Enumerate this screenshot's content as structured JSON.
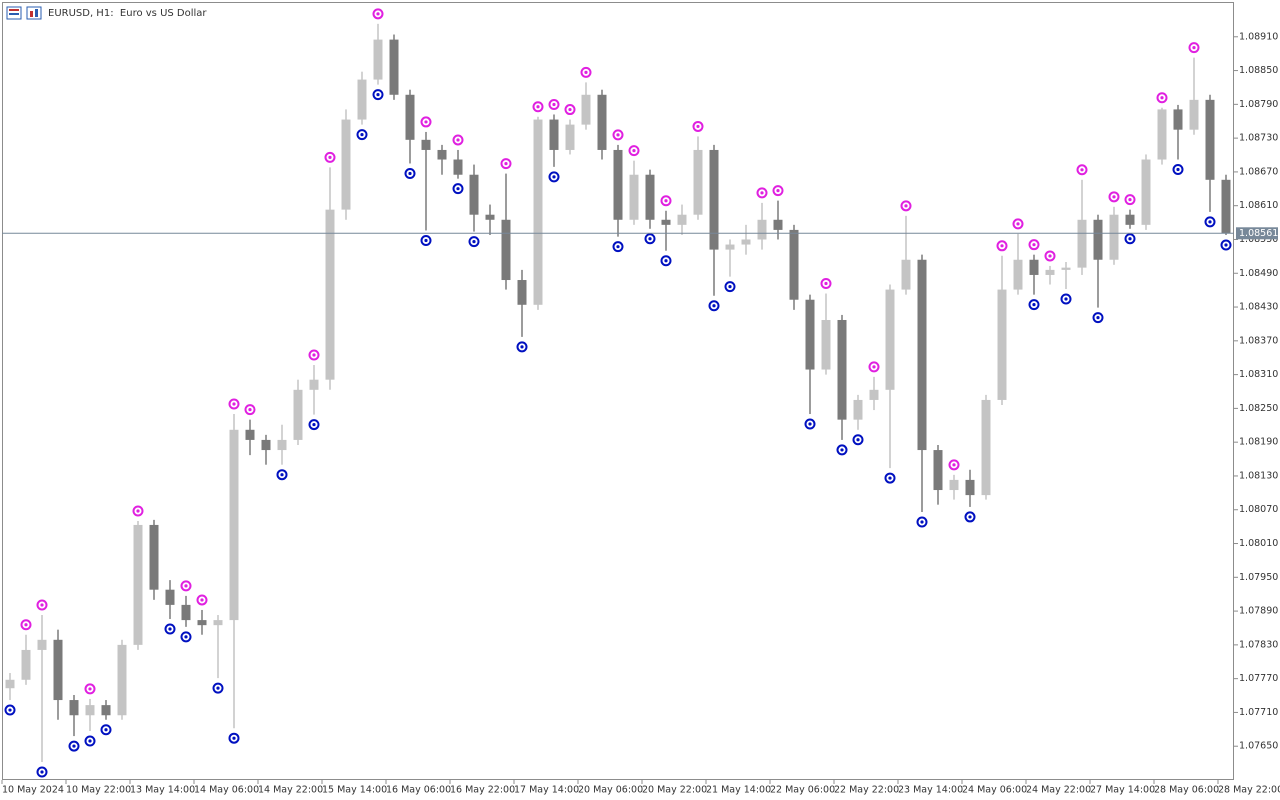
{
  "chart_data": {
    "type": "candlestick",
    "title": "EURUSD, H1:  Euro vs US Dollar",
    "categories": [
      "10 May 2024",
      null,
      null,
      null,
      "10 May 22:00",
      null,
      null,
      null,
      "13 May 14:00",
      null,
      null,
      null,
      "14 May 06:00",
      null,
      null,
      null,
      "14 May 22:00",
      null,
      null,
      null,
      "15 May 14:00",
      null,
      null,
      null,
      "16 May 06:00",
      null,
      null,
      null,
      "16 May 22:00",
      null,
      null,
      null,
      "17 May 14:00",
      null,
      null,
      null,
      "20 May 06:00",
      null,
      null,
      null,
      "20 May 22:00",
      null,
      null,
      null,
      "21 May 14:00",
      null,
      null,
      null,
      "22 May 06:00",
      null,
      null,
      null,
      "22 May 22:00",
      null,
      null,
      null,
      "23 May 14:00",
      null,
      null,
      null,
      "24 May 06:00",
      null,
      null,
      null,
      "24 May 22:00",
      null,
      null,
      null,
      "27 May 14:00",
      null,
      null,
      null,
      "28 May 06:00",
      null,
      null,
      null,
      "28 May 22:00"
    ],
    "open": [
      1.07753,
      1.07768,
      1.07821,
      1.07839,
      1.07732,
      1.07705,
      1.07723,
      1.07705,
      1.0783,
      1.08043,
      1.07928,
      1.07901,
      1.07874,
      1.07865,
      1.07874,
      1.08212,
      1.08194,
      1.08176,
      1.08194,
      1.08283,
      1.08301,
      1.08603,
      1.08763,
      1.08834,
      1.08905,
      1.08807,
      1.08727,
      1.08709,
      1.08692,
      1.08665,
      1.08594,
      1.08585,
      1.08478,
      1.08434,
      1.08763,
      1.08709,
      1.08754,
      1.08807,
      1.08709,
      1.08585,
      1.08665,
      1.08585,
      1.08576,
      1.08594,
      1.08709,
      1.08532,
      1.08541,
      1.0855,
      1.08585,
      1.08567,
      1.08443,
      1.08319,
      1.08407,
      1.0823,
      1.08265,
      1.08283,
      1.08461,
      1.08514,
      1.08176,
      1.08105,
      1.08123,
      1.08096,
      1.08265,
      1.08461,
      1.08514,
      1.08487,
      1.08496,
      1.085,
      1.08585,
      1.08514,
      1.08594,
      1.08576,
      1.08692,
      1.08781,
      1.08745,
      1.08798,
      1.08656
    ],
    "high": [
      1.0778,
      1.07848,
      1.07883,
      1.07857,
      1.07741,
      1.07734,
      1.07732,
      1.07839,
      1.0805,
      1.08052,
      1.07945,
      1.07917,
      1.07892,
      1.07883,
      1.0824,
      1.0823,
      1.08203,
      1.08221,
      1.08301,
      1.08327,
      1.08678,
      1.08781,
      1.08848,
      1.08933,
      1.08914,
      1.08816,
      1.08741,
      1.08718,
      1.08709,
      1.08683,
      1.08612,
      1.08667,
      1.08496,
      1.08768,
      1.08772,
      1.08763,
      1.08829,
      1.08816,
      1.08718,
      1.0869,
      1.08674,
      1.08601,
      1.08612,
      1.08733,
      1.08718,
      1.0855,
      1.08576,
      1.08615,
      1.08619,
      1.08576,
      1.08452,
      1.08454,
      1.08416,
      1.08274,
      1.08306,
      1.0847,
      1.08592,
      1.08523,
      1.08185,
      1.08132,
      1.08141,
      1.08274,
      1.08521,
      1.0856,
      1.08523,
      1.08503,
      1.0851,
      1.08656,
      1.08594,
      1.08608,
      1.08603,
      1.08701,
      1.08784,
      1.08789,
      1.08873,
      1.08807,
      1.08665
    ],
    "low": [
      1.07732,
      1.07759,
      1.07622,
      1.07697,
      1.07668,
      1.07677,
      1.07697,
      1.07697,
      1.07821,
      1.0791,
      1.07876,
      1.07862,
      1.07848,
      1.07771,
      1.07682,
      1.08167,
      1.0815,
      1.0815,
      1.08185,
      1.08239,
      1.08283,
      1.08585,
      1.08754,
      1.08825,
      1.08798,
      1.08685,
      1.08566,
      1.08665,
      1.08658,
      1.08564,
      1.08558,
      1.08461,
      1.08377,
      1.08425,
      1.08679,
      1.08701,
      1.08745,
      1.08692,
      1.08555,
      1.08576,
      1.08569,
      1.0853,
      1.08558,
      1.08585,
      1.0845,
      1.08484,
      1.08523,
      1.08532,
      1.0855,
      1.08425,
      1.0824,
      1.0831,
      1.08194,
      1.08212,
      1.08247,
      1.08144,
      1.08452,
      1.08066,
      1.08079,
      1.08088,
      1.08075,
      1.08088,
      1.08256,
      1.08452,
      1.08452,
      1.0847,
      1.08462,
      1.08487,
      1.08429,
      1.08505,
      1.08569,
      1.08567,
      1.08683,
      1.08692,
      1.08736,
      1.08599,
      1.08558
    ],
    "close": [
      1.07768,
      1.07821,
      1.07839,
      1.07732,
      1.07705,
      1.07723,
      1.07705,
      1.0783,
      1.08043,
      1.07928,
      1.07901,
      1.07874,
      1.07865,
      1.07874,
      1.08212,
      1.08194,
      1.08176,
      1.08194,
      1.08283,
      1.08301,
      1.08603,
      1.08763,
      1.08834,
      1.08905,
      1.08807,
      1.08727,
      1.08709,
      1.08692,
      1.08665,
      1.08594,
      1.08585,
      1.08478,
      1.08434,
      1.08763,
      1.08709,
      1.08754,
      1.08807,
      1.08709,
      1.08585,
      1.08665,
      1.08585,
      1.08576,
      1.08594,
      1.08709,
      1.08532,
      1.08541,
      1.0855,
      1.08585,
      1.08567,
      1.08443,
      1.08319,
      1.08407,
      1.0823,
      1.08265,
      1.08283,
      1.08461,
      1.08514,
      1.08176,
      1.08105,
      1.08123,
      1.08096,
      1.08265,
      1.08461,
      1.08514,
      1.08487,
      1.08496,
      1.085,
      1.08585,
      1.08514,
      1.08594,
      1.08576,
      1.08692,
      1.08781,
      1.08745,
      1.08798,
      1.08656,
      1.08561
    ],
    "up_color": "#c4c4c4",
    "down_color": "#7a7a7a",
    "fractals_up": {
      "color": "#e020e0",
      "values": [
        null,
        1.07848,
        1.07883,
        null,
        null,
        1.07734,
        null,
        null,
        1.0805,
        null,
        null,
        1.07917,
        1.07892,
        null,
        1.0824,
        1.0823,
        null,
        null,
        null,
        1.08327,
        1.08678,
        null,
        null,
        1.08933,
        null,
        null,
        1.08741,
        null,
        1.08709,
        null,
        null,
        1.08667,
        null,
        1.08768,
        1.08772,
        1.08763,
        1.08829,
        null,
        1.08718,
        1.0869,
        null,
        1.08601,
        null,
        1.08733,
        null,
        null,
        null,
        1.08615,
        1.08619,
        null,
        null,
        1.08454,
        null,
        null,
        1.08306,
        null,
        1.08592,
        null,
        null,
        1.08132,
        null,
        null,
        1.08521,
        1.0856,
        1.08523,
        1.08503,
        null,
        1.08656,
        null,
        1.08608,
        1.08603,
        null,
        1.08784,
        null,
        1.08873,
        null,
        null
      ]
    },
    "fractals_down": {
      "color": "#0010c0",
      "values": [
        1.07732,
        null,
        1.07622,
        null,
        1.07668,
        1.07677,
        1.07697,
        null,
        null,
        null,
        1.07876,
        1.07862,
        null,
        1.07771,
        1.07682,
        null,
        null,
        1.0815,
        null,
        1.08239,
        null,
        null,
        1.08754,
        1.08825,
        null,
        1.08685,
        1.08566,
        null,
        1.08658,
        1.08564,
        null,
        null,
        1.08377,
        null,
        1.08679,
        null,
        null,
        null,
        1.08555,
        null,
        1.08569,
        1.0853,
        null,
        null,
        1.0845,
        1.08484,
        null,
        null,
        null,
        null,
        1.0824,
        null,
        1.08194,
        1.08212,
        null,
        1.08144,
        null,
        1.08066,
        null,
        null,
        1.08075,
        null,
        null,
        null,
        1.08452,
        null,
        1.08462,
        null,
        1.08429,
        null,
        1.08569,
        null,
        null,
        1.08692,
        null,
        1.08599,
        1.08558
      ]
    },
    "current_price": {
      "value": 1.08561,
      "label": "1.08561"
    },
    "ylim": [
      1.0759,
      1.0897
    ],
    "yticks": [
      {
        "value": 1.0765,
        "label": "1.07650"
      },
      {
        "value": 1.0771,
        "label": "1.07710"
      },
      {
        "value": 1.0777,
        "label": "1.07770"
      },
      {
        "value": 1.0783,
        "label": "1.07830"
      },
      {
        "value": 1.0789,
        "label": "1.07890"
      },
      {
        "value": 1.0795,
        "label": "1.07950"
      },
      {
        "value": 1.0801,
        "label": "1.08010"
      },
      {
        "value": 1.0807,
        "label": "1.08070"
      },
      {
        "value": 1.0813,
        "label": "1.08130"
      },
      {
        "value": 1.0819,
        "label": "1.08190"
      },
      {
        "value": 1.0825,
        "label": "1.08250"
      },
      {
        "value": 1.0831,
        "label": "1.08310"
      },
      {
        "value": 1.0837,
        "label": "1.08370"
      },
      {
        "value": 1.0843,
        "label": "1.08430"
      },
      {
        "value": 1.0849,
        "label": "1.08490"
      },
      {
        "value": 1.0855,
        "label": "1.08550"
      },
      {
        "value": 1.0861,
        "label": "1.08610"
      },
      {
        "value": 1.0867,
        "label": "1.08670"
      },
      {
        "value": 1.0873,
        "label": "1.08730"
      },
      {
        "value": 1.0879,
        "label": "1.08790"
      },
      {
        "value": 1.0885,
        "label": "1.08850"
      },
      {
        "value": 1.0891,
        "label": "1.08910"
      }
    ],
    "grid": false
  }
}
